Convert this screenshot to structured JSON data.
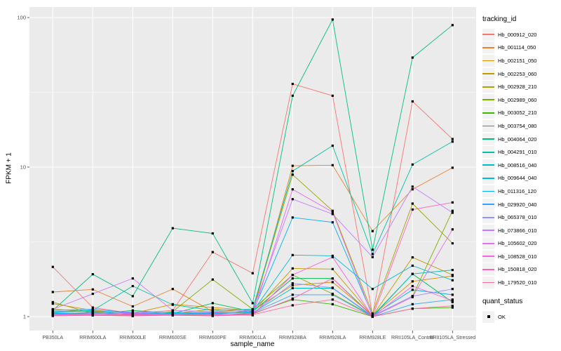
{
  "chart": {
    "ylabel": "FPKM + 1",
    "xlabel": "sample_name",
    "legend_title": "tracking_id",
    "legend2_title": "quant_status",
    "legend2_item": "OK",
    "panel_bg": "#EBEBEB",
    "grid_color": "#FFFFFF",
    "tick_label_color": "#4D4D4D",
    "point_color": "#000000"
  },
  "chart_data": {
    "type": "line",
    "x_axis": "sample_name",
    "y_axis": "FPKM + 1",
    "y_scale": "log10",
    "y_ticks": [
      1,
      10,
      100
    ],
    "y_minor_ticks": [
      3.1623,
      31.623
    ],
    "ylim_px_note": "log decade height calibrated to source plot",
    "legend_position": "right",
    "grid": true,
    "point_marker": {
      "shape": "square",
      "color": "#000000",
      "meaning": "OK"
    },
    "categories": [
      "PB350LA",
      "RRIM600LA",
      "RRIM600LE",
      "RRIM600SE",
      "RRIM600PE",
      "RRIM901LA",
      "RRIM928BA",
      "RRIM928LA",
      "RRIM928LE",
      "RRII105LA_Control",
      "RRII105LA_Stressed"
    ],
    "series": [
      {
        "name": "Hb_000912_020",
        "color": "#F8766D",
        "values": [
          2.15,
          1.15,
          1.05,
          1.1,
          2.7,
          1.95,
          36,
          30,
          1.02,
          27.5,
          15.4
        ]
      },
      {
        "name": "Hb_001114_050",
        "color": "#EA8331",
        "values": [
          1.46,
          1.52,
          1.17,
          1.53,
          1.08,
          1.05,
          10.2,
          10.3,
          3.73,
          7.1,
          9.9
        ]
      },
      {
        "name": "Hb_002151_050",
        "color": "#D89000",
        "values": [
          1.22,
          1.1,
          1.05,
          1.21,
          1.15,
          1.1,
          1.62,
          1.7,
          1.02,
          1.72,
          1.87
        ]
      },
      {
        "name": "Hb_002253_060",
        "color": "#C09B00",
        "values": [
          1.12,
          1.08,
          1.03,
          1.05,
          1.12,
          1.07,
          2.1,
          2.08,
          1.01,
          2.49,
          1.9
        ]
      },
      {
        "name": "Hb_002928_210",
        "color": "#A3A500",
        "values": [
          1.25,
          1.05,
          1.02,
          1.04,
          1.03,
          1.1,
          8.9,
          5.1,
          1.05,
          5.7,
          3.09
        ]
      },
      {
        "name": "Hb_002989_060",
        "color": "#7CAE00",
        "values": [
          1.05,
          1.03,
          1.02,
          1.08,
          1.77,
          1.12,
          1.9,
          1.42,
          1.01,
          1.37,
          5.1
        ]
      },
      {
        "name": "Hb_003052_210",
        "color": "#39B600",
        "values": [
          1.03,
          1.02,
          1.01,
          1.03,
          1.02,
          1.05,
          1.3,
          1.21,
          1.0,
          1.13,
          1.15
        ]
      },
      {
        "name": "Hb_003754_080",
        "color": "#00BB4E",
        "values": [
          1.06,
          1.04,
          1.1,
          1.05,
          1.23,
          1.08,
          1.8,
          1.8,
          1.01,
          1.93,
          1.25
        ]
      },
      {
        "name": "Hb_004064_020",
        "color": "#00BF7D",
        "values": [
          1.1,
          1.92,
          1.37,
          3.9,
          3.6,
          1.23,
          30,
          97,
          2.8,
          54,
          89
        ]
      },
      {
        "name": "Hb_004291_010",
        "color": "#00C1A3",
        "values": [
          1.08,
          1.1,
          1.6,
          1.2,
          1.1,
          1.12,
          9.4,
          13.9,
          2.62,
          10.4,
          14.8
        ]
      },
      {
        "name": "Hb_008516_040",
        "color": "#00BFC4",
        "values": [
          1.05,
          1.06,
          1.04,
          1.07,
          1.05,
          1.06,
          1.55,
          1.55,
          1.0,
          1.93,
          2.05
        ]
      },
      {
        "name": "Hb_009644_040",
        "color": "#00BAE0",
        "values": [
          1.07,
          1.09,
          1.05,
          1.06,
          1.04,
          1.08,
          2.58,
          2.55,
          1.53,
          2.19,
          1.75
        ]
      },
      {
        "name": "Hb_011316_120",
        "color": "#00B0F6",
        "values": [
          1.04,
          1.07,
          1.03,
          1.05,
          1.06,
          1.07,
          4.6,
          4.27,
          1.02,
          1.51,
          1.4
        ]
      },
      {
        "name": "Hb_029920_040",
        "color": "#35A2FF",
        "values": [
          1.1,
          1.12,
          1.06,
          1.04,
          1.05,
          1.06,
          1.4,
          1.4,
          1.0,
          1.21,
          1.3
        ]
      },
      {
        "name": "Hb_065378_010",
        "color": "#9590FF",
        "values": [
          1.06,
          1.05,
          1.08,
          1.06,
          1.07,
          1.05,
          1.67,
          1.56,
          1.01,
          1.37,
          1.53
        ]
      },
      {
        "name": "Hb_073866_010",
        "color": "#C77CFF",
        "values": [
          1.12,
          1.42,
          1.8,
          1.1,
          1.08,
          1.1,
          6.1,
          4.85,
          2.5,
          7.4,
          4.95
        ]
      },
      {
        "name": "Hb_105602_020",
        "color": "#E76BF3",
        "values": [
          1.03,
          1.04,
          1.05,
          1.03,
          1.04,
          1.02,
          7.1,
          5.0,
          1.0,
          1.35,
          3.83
        ]
      },
      {
        "name": "Hb_108528_010",
        "color": "#FA62DB",
        "values": [
          1.02,
          1.03,
          1.02,
          1.04,
          1.03,
          1.03,
          1.9,
          2.5,
          1.0,
          1.6,
          1.28
        ]
      },
      {
        "name": "Hb_150818_020",
        "color": "#FF62BC",
        "values": [
          1.04,
          1.02,
          1.03,
          1.02,
          1.02,
          1.04,
          1.32,
          1.8,
          1.0,
          5.2,
          5.8
        ]
      },
      {
        "name": "Hb_179520_010",
        "color": "#FF6A98",
        "values": [
          1.01,
          1.02,
          1.01,
          1.02,
          1.01,
          1.03,
          1.19,
          1.3,
          1.0,
          1.13,
          1.18
        ]
      }
    ]
  }
}
